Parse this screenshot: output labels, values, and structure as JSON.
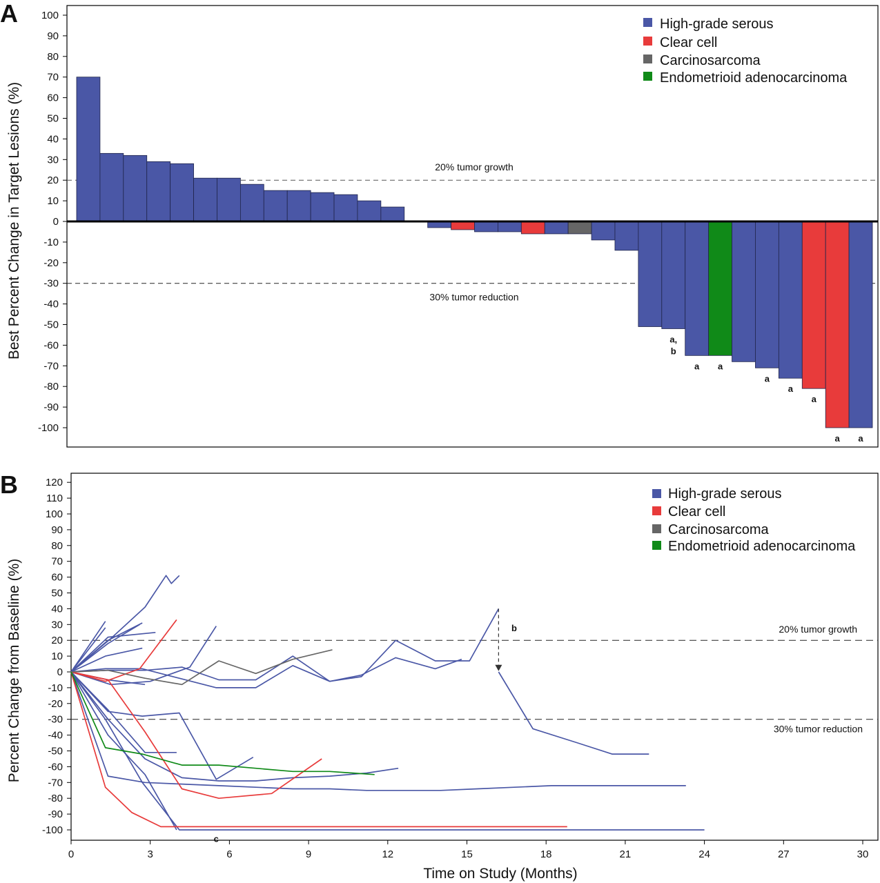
{
  "chart_data": [
    {
      "type": "bar",
      "panel_label": "A",
      "ylabel": "Best Percent Change in Target Lesions (%)",
      "xlabel": "",
      "ylim": [
        -100,
        100
      ],
      "yticks": [
        100,
        90,
        80,
        70,
        60,
        50,
        40,
        30,
        20,
        10,
        0,
        -10,
        -20,
        -30,
        -40,
        -50,
        -60,
        -70,
        -80,
        -90,
        -100
      ],
      "reference_lines": [
        {
          "value": 20,
          "label": "20% tumor growth"
        },
        {
          "value": -30,
          "label": "30% tumor reduction"
        }
      ],
      "legend": [
        {
          "name": "High-grade serous",
          "color": "#4a57a6"
        },
        {
          "name": "Clear cell",
          "color": "#e83b3b"
        },
        {
          "name": "Carcinosarcoma",
          "color": "#666666"
        },
        {
          "name": "Endometrioid adenocarcinoma",
          "color": "#108a18"
        }
      ],
      "bars": [
        {
          "value": 70,
          "histology": "High-grade serous",
          "note": ""
        },
        {
          "value": 33,
          "histology": "High-grade serous",
          "note": ""
        },
        {
          "value": 32,
          "histology": "High-grade serous",
          "note": ""
        },
        {
          "value": 29,
          "histology": "High-grade serous",
          "note": ""
        },
        {
          "value": 28,
          "histology": "High-grade serous",
          "note": ""
        },
        {
          "value": 21,
          "histology": "High-grade serous",
          "note": ""
        },
        {
          "value": 21,
          "histology": "High-grade serous",
          "note": ""
        },
        {
          "value": 18,
          "histology": "High-grade serous",
          "note": ""
        },
        {
          "value": 15,
          "histology": "High-grade serous",
          "note": ""
        },
        {
          "value": 15,
          "histology": "High-grade serous",
          "note": ""
        },
        {
          "value": 14,
          "histology": "High-grade serous",
          "note": ""
        },
        {
          "value": 13,
          "histology": "High-grade serous",
          "note": ""
        },
        {
          "value": 10,
          "histology": "High-grade serous",
          "note": ""
        },
        {
          "value": 7,
          "histology": "High-grade serous",
          "note": ""
        },
        {
          "value": 0,
          "histology": "High-grade serous",
          "note": ""
        },
        {
          "value": -3,
          "histology": "High-grade serous",
          "note": ""
        },
        {
          "value": -4,
          "histology": "Clear cell",
          "note": ""
        },
        {
          "value": -5,
          "histology": "High-grade serous",
          "note": ""
        },
        {
          "value": -5,
          "histology": "High-grade serous",
          "note": ""
        },
        {
          "value": -6,
          "histology": "Clear cell",
          "note": ""
        },
        {
          "value": -6,
          "histology": "High-grade serous",
          "note": ""
        },
        {
          "value": -6,
          "histology": "Carcinosarcoma",
          "note": ""
        },
        {
          "value": -9,
          "histology": "High-grade serous",
          "note": ""
        },
        {
          "value": -14,
          "histology": "High-grade serous",
          "note": ""
        },
        {
          "value": -51,
          "histology": "High-grade serous",
          "note": ""
        },
        {
          "value": -52,
          "histology": "High-grade serous",
          "note": "a,\nb"
        },
        {
          "value": -65,
          "histology": "High-grade serous",
          "note": "a"
        },
        {
          "value": -65,
          "histology": "Endometrioid adenocarcinoma",
          "note": "a"
        },
        {
          "value": -68,
          "histology": "High-grade serous",
          "note": ""
        },
        {
          "value": -71,
          "histology": "High-grade serous",
          "note": "a"
        },
        {
          "value": -76,
          "histology": "High-grade serous",
          "note": "a"
        },
        {
          "value": -81,
          "histology": "Clear cell",
          "note": "a"
        },
        {
          "value": -100,
          "histology": "Clear cell",
          "note": "a"
        },
        {
          "value": -100,
          "histology": "High-grade serous",
          "note": "a"
        }
      ]
    },
    {
      "type": "line",
      "panel_label": "B",
      "xlabel": "Time on Study (Months)",
      "ylabel": "Percent Change from Baseline (%)",
      "xlim": [
        0,
        30.5
      ],
      "ylim": [
        -105,
        122
      ],
      "xticks": [
        0,
        3,
        6,
        9,
        12,
        15,
        18,
        21,
        24,
        27,
        30
      ],
      "yticks": [
        120,
        110,
        100,
        90,
        80,
        70,
        60,
        50,
        40,
        30,
        20,
        10,
        0,
        -10,
        -20,
        -30,
        -40,
        -50,
        -60,
        -70,
        -80,
        -90,
        -100
      ],
      "reference_lines": [
        {
          "value": 20,
          "label": "20% tumor growth"
        },
        {
          "value": -30,
          "label": "30% tumor reduction"
        }
      ],
      "legend": [
        {
          "name": "High-grade serous",
          "color": "#4a57a6"
        },
        {
          "name": "Clear cell",
          "color": "#e83b3b"
        },
        {
          "name": "Carcinosarcoma",
          "color": "#666666"
        },
        {
          "name": "Endometrioid adenocarcinoma",
          "color": "#108a18"
        }
      ],
      "annotations": [
        {
          "text": "b",
          "x": 16.4,
          "y": 28
        },
        {
          "text": "c",
          "x": 5.5,
          "y": -102
        }
      ],
      "arrow": {
        "x": 16.2,
        "from_y": 40,
        "to_y": 1
      },
      "series": [
        {
          "histology": "High-grade serous",
          "x": [
            0,
            1.3
          ],
          "y": [
            0,
            32
          ]
        },
        {
          "histology": "High-grade serous",
          "x": [
            0,
            1.3
          ],
          "y": [
            0,
            28
          ]
        },
        {
          "histology": "High-grade serous",
          "x": [
            0,
            1.4,
            2.7
          ],
          "y": [
            0,
            20,
            31
          ]
        },
        {
          "histology": "High-grade serous",
          "x": [
            0,
            1.4,
            2.6
          ],
          "y": [
            0,
            18,
            30
          ]
        },
        {
          "histology": "High-grade serous",
          "x": [
            0,
            1.5,
            2.8,
            3.6,
            3.8,
            4.1
          ],
          "y": [
            0,
            21,
            41,
            61,
            56,
            61
          ]
        },
        {
          "histology": "High-grade serous",
          "x": [
            0,
            1.4,
            3.2
          ],
          "y": [
            0,
            22,
            25
          ]
        },
        {
          "histology": "High-grade serous",
          "x": [
            0,
            1.3,
            2.7
          ],
          "y": [
            0,
            10,
            15
          ]
        },
        {
          "histology": "High-grade serous",
          "x": [
            0,
            1.4,
            2.8
          ],
          "y": [
            0,
            -5,
            -8
          ]
        },
        {
          "histology": "High-grade serous",
          "x": [
            0,
            1.5,
            3.0,
            4.5,
            5.5
          ],
          "y": [
            0,
            -8,
            -6,
            3,
            29
          ]
        },
        {
          "histology": "High-grade serous",
          "x": [
            0,
            1.4,
            2.8,
            4.2,
            5.6,
            7.0,
            8.4,
            9.8,
            11.0,
            12.3,
            13.8,
            15.1,
            16.2
          ],
          "y": [
            0,
            1,
            1,
            3,
            -5,
            -5,
            10,
            -6,
            -3,
            20,
            7,
            7,
            40
          ]
        },
        {
          "histology": "High-grade serous",
          "x": [
            16.2,
            17.5,
            19.2,
            20.5,
            21.9
          ],
          "y": [
            0,
            -36,
            -45,
            -52,
            -52
          ]
        },
        {
          "histology": "High-grade serous",
          "x": [
            0,
            1.3,
            2.7,
            4.1,
            5.5,
            7.0,
            8.4,
            9.8,
            11.0,
            12.3,
            13.8,
            14.8
          ],
          "y": [
            0,
            2,
            2,
            -4,
            -10,
            -10,
            4,
            -6,
            -2,
            9,
            2,
            8
          ]
        },
        {
          "histology": "High-grade serous",
          "x": [
            0,
            1.4,
            2.8,
            4.0
          ],
          "y": [
            0,
            -24,
            -51,
            -51
          ]
        },
        {
          "histology": "High-grade serous",
          "x": [
            0,
            1.4,
            2.7,
            4.1,
            5.5,
            6.9
          ],
          "y": [
            0,
            -25,
            -28,
            -26,
            -68,
            -54
          ]
        },
        {
          "histology": "High-grade serous",
          "x": [
            0,
            1.4,
            2.8,
            4.2,
            5.6,
            7.0,
            8.4,
            9.8,
            11.2,
            12.4
          ],
          "y": [
            0,
            -30,
            -55,
            -67,
            -69,
            -69,
            -67,
            -66,
            -64,
            -61
          ]
        },
        {
          "histology": "High-grade serous",
          "x": [
            0,
            1.4,
            2.8,
            4.2,
            5.6,
            7.0,
            8.4,
            9.8,
            11.2,
            12.6,
            14.0,
            15.4,
            16.8,
            18.2,
            19.6,
            21.0,
            22.4,
            23.3
          ],
          "y": [
            0,
            -66,
            -70,
            -71,
            -72,
            -73,
            -74,
            -74,
            -75,
            -75,
            -75,
            -74,
            -73,
            -72,
            -72,
            -72,
            -72,
            -72
          ]
        },
        {
          "histology": "High-grade serous",
          "x": [
            0,
            1.3,
            2.7,
            4.1,
            5.0,
            8.0,
            12.0,
            16.0,
            20.0,
            24.0
          ],
          "y": [
            0,
            -30,
            -70,
            -100,
            -100,
            -100,
            -100,
            -100,
            -100,
            -100
          ]
        },
        {
          "histology": "High-grade serous",
          "x": [
            0,
            1.4,
            2.8,
            4.0
          ],
          "y": [
            0,
            -40,
            -65,
            -100
          ]
        },
        {
          "histology": "Clear cell",
          "x": [
            0,
            1.3,
            2.6,
            4.0
          ],
          "y": [
            0,
            -6,
            2,
            33
          ]
        },
        {
          "histology": "Clear cell",
          "x": [
            0,
            1.4,
            2.8,
            4.2,
            5.6,
            7.6,
            9.5
          ],
          "y": [
            0,
            -5,
            -38,
            -74,
            -80,
            -77,
            -55
          ]
        },
        {
          "histology": "Clear cell",
          "x": [
            0,
            1.3,
            2.3,
            3.4,
            6.0,
            10.0,
            14.0,
            18.8
          ],
          "y": [
            0,
            -73,
            -89,
            -98,
            -98,
            -98,
            -98,
            -98
          ]
        },
        {
          "histology": "Carcinosarcoma",
          "x": [
            0,
            1.4,
            2.8,
            4.2,
            5.6,
            7.0,
            8.4,
            9.9
          ],
          "y": [
            0,
            1,
            -4,
            -8,
            7,
            -1,
            8,
            14
          ]
        },
        {
          "histology": "Endometrioid adenocarcinoma",
          "x": [
            0,
            1.3,
            2.7,
            4.2,
            5.6,
            7.0,
            8.4,
            9.8,
            11.5
          ],
          "y": [
            0,
            -48,
            -52,
            -59,
            -59,
            -61,
            -63,
            -63,
            -65
          ]
        }
      ]
    }
  ]
}
